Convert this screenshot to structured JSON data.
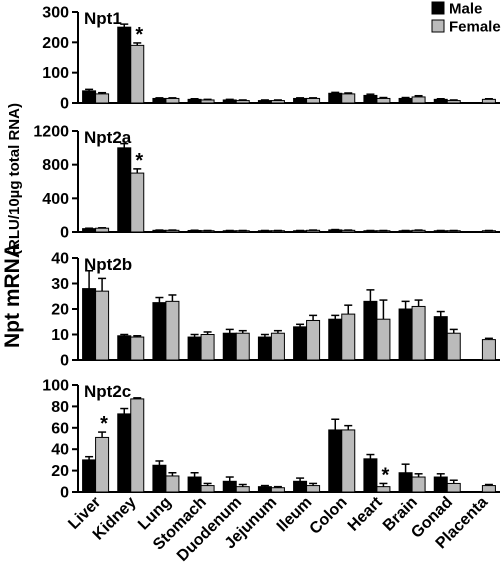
{
  "chart_data": {
    "type": "bar",
    "ylabel": "Npt mRNA",
    "ylabel_units": "(RLU/10µg total RNA)",
    "categories": [
      "Liver",
      "Kidney",
      "Lung",
      "Stomach",
      "Duodenum",
      "Jejunum",
      "Ileum",
      "Colon",
      "Heart",
      "Brain",
      "Gonad",
      "Placenta"
    ],
    "legend": {
      "placement": "top-right",
      "items": [
        {
          "name": "Male",
          "color": "#000000"
        },
        {
          "name": "Female",
          "color": "#bbbbbb"
        }
      ]
    },
    "significance_marker": "*",
    "panels": [
      {
        "title": "Npt1",
        "ylim": [
          0,
          300
        ],
        "yticks": [
          0,
          100,
          200,
          300
        ],
        "series": [
          {
            "name": "Male",
            "values": [
              40,
              250,
              15,
              12,
              10,
              8,
              15,
              32,
              25,
              15,
              12,
              null
            ],
            "errors": [
              5,
              10,
              2,
              2,
              2,
              2,
              2,
              3,
              4,
              3,
              2,
              null
            ]
          },
          {
            "name": "Female",
            "values": [
              30,
              190,
              15,
              10,
              8,
              8,
              15,
              30,
              15,
              20,
              8,
              12
            ],
            "errors": [
              4,
              8,
              2,
              2,
              2,
              2,
              2,
              3,
              3,
              4,
              2,
              2
            ]
          }
        ],
        "significant": [
          {
            "category": "Kidney",
            "series": "Female"
          }
        ]
      },
      {
        "title": "Npt2a",
        "ylim": [
          0,
          1200
        ],
        "yticks": [
          0,
          400,
          800,
          1200
        ],
        "series": [
          {
            "name": "Male",
            "values": [
              40,
              1000,
              20,
              18,
              15,
              15,
              15,
              25,
              15,
              15,
              15,
              null
            ],
            "errors": [
              5,
              50,
              3,
              3,
              3,
              3,
              3,
              4,
              3,
              3,
              3,
              null
            ]
          },
          {
            "name": "Female",
            "values": [
              45,
              700,
              20,
              15,
              15,
              15,
              20,
              20,
              15,
              20,
              15,
              15
            ],
            "errors": [
              5,
              50,
              3,
              3,
              3,
              3,
              3,
              3,
              3,
              3,
              3,
              3
            ]
          }
        ],
        "significant": [
          {
            "category": "Kidney",
            "series": "Female"
          }
        ]
      },
      {
        "title": "Npt2b",
        "ylim": [
          0,
          40
        ],
        "yticks": [
          0,
          10,
          20,
          30,
          40
        ],
        "series": [
          {
            "name": "Male",
            "values": [
              28,
              9.5,
              22.5,
              9,
              10.5,
              9,
              13,
              16,
              23,
              20,
              17,
              null
            ],
            "errors": [
              7,
              0.5,
              2,
              1,
              1.5,
              1,
              1,
              1.5,
              4.5,
              3,
              2,
              null
            ]
          },
          {
            "name": "Female",
            "values": [
              27,
              9,
              23,
              10,
              10.5,
              10.5,
              15.5,
              18,
              16,
              21,
              10.5,
              8
            ],
            "errors": [
              5,
              0.5,
              2.5,
              1,
              1,
              1,
              2,
              3.5,
              7.5,
              2.5,
              1.5,
              0.5
            ]
          }
        ],
        "significant": []
      },
      {
        "title": "Npt2c",
        "ylim": [
          0,
          100
        ],
        "yticks": [
          0,
          20,
          40,
          60,
          80,
          100
        ],
        "series": [
          {
            "name": "Male",
            "values": [
              30,
              73,
              25,
              14,
              10,
              5,
              10,
              58,
              31,
              18,
              14,
              null
            ],
            "errors": [
              3,
              5,
              4,
              4,
              4,
              1,
              3,
              10,
              4,
              8,
              3,
              null
            ]
          },
          {
            "name": "Female",
            "values": [
              51,
              87,
              15,
              6,
              5,
              4,
              6,
              58,
              5,
              14,
              8,
              6
            ],
            "errors": [
              5,
              1,
              3,
              2,
              2,
              1,
              2,
              4,
              3,
              3,
              3,
              1
            ]
          }
        ],
        "significant": [
          {
            "category": "Liver",
            "series": "Female"
          },
          {
            "category": "Heart",
            "series": "Female"
          }
        ]
      }
    ]
  }
}
